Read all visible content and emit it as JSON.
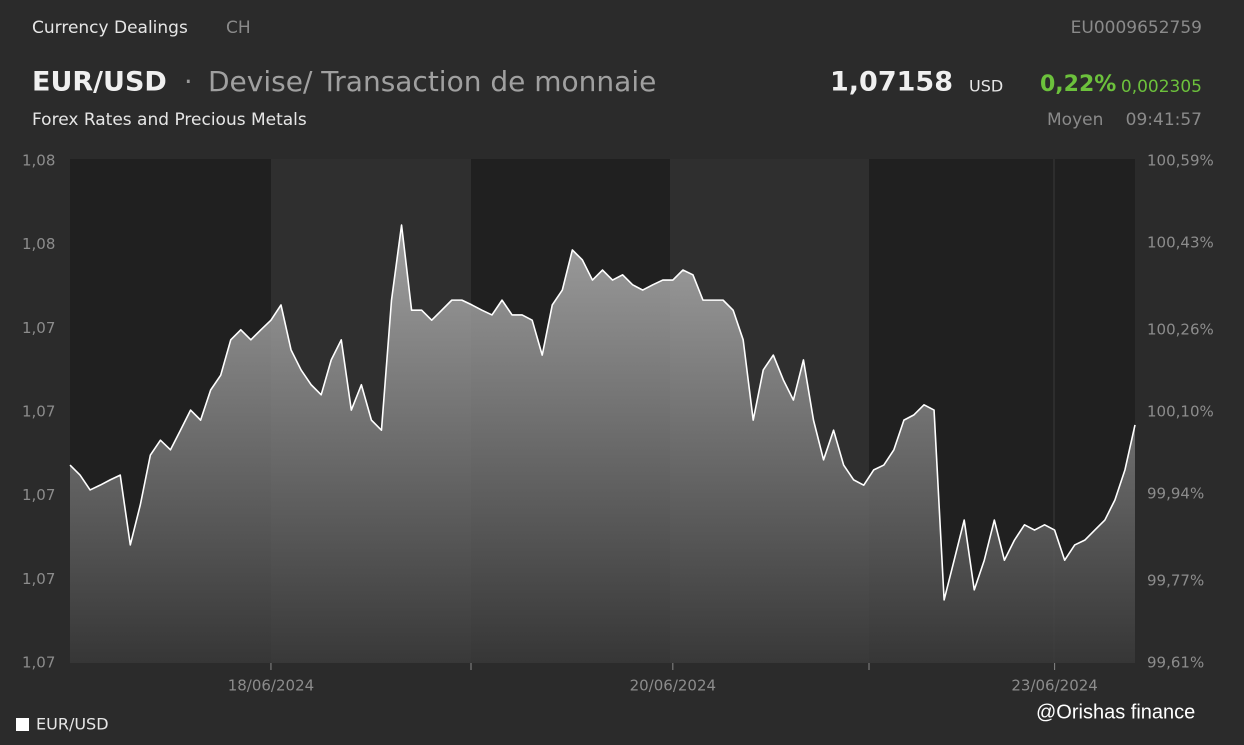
{
  "header": {
    "section": "Currency Dealings",
    "market": "CH",
    "isin": "EU0009652759",
    "symbol": "EUR/USD",
    "separator": "·",
    "name": "Devise/ Transaction de monnaie",
    "subtitle": "Forex Rates and Precious Metals",
    "price": "1,07158",
    "currency": "USD",
    "change_pct": "0,22%",
    "change": "0,002305",
    "price_type": "Moyen",
    "time": "09:41:57"
  },
  "watermark": "@Orishas finance",
  "chart_data": {
    "type": "line",
    "xlim": [
      0,
      106
    ],
    "xticks": [
      {
        "value": 20,
        "label": "18/06/2024"
      },
      {
        "value": 60,
        "label": "20/06/2024"
      },
      {
        "value": 98,
        "label": "23/06/2024"
      }
    ],
    "ylim": [
      1.0665,
      1.077
    ],
    "yticks": [
      {
        "value": 1.0665,
        "label": "1,07"
      },
      {
        "value": 1.06825,
        "label": "1,07"
      },
      {
        "value": 1.07,
        "label": "1,07"
      },
      {
        "value": 1.07175,
        "label": "1,07"
      },
      {
        "value": 1.0735,
        "label": "1,07"
      },
      {
        "value": 1.07525,
        "label": "1,08"
      },
      {
        "value": 1.077,
        "label": "1,08"
      }
    ],
    "y2lim": [
      99.61,
      100.59
    ],
    "y2ticks": [
      {
        "value": 99.61,
        "label": "99,61%"
      },
      {
        "value": 99.77,
        "label": "99,77%"
      },
      {
        "value": 99.94,
        "label": "99,94%"
      },
      {
        "value": 100.1,
        "label": "100,10%"
      },
      {
        "value": 100.26,
        "label": "100,26%"
      },
      {
        "value": 100.43,
        "label": "100,43%"
      },
      {
        "value": 100.59,
        "label": "100,59%"
      }
    ],
    "grid": false,
    "legend": "bottom-left",
    "series": [
      {
        "name": "EUR/USD",
        "color": "#ffffff",
        "values": [
          1.07064,
          1.07043,
          1.07012,
          1.07022,
          1.07033,
          1.07043,
          1.06897,
          1.06981,
          1.07085,
          1.07116,
          1.07096,
          1.07137,
          1.07179,
          1.07158,
          1.07221,
          1.07252,
          1.07326,
          1.07347,
          1.07326,
          1.07347,
          1.07367,
          1.07399,
          1.07305,
          1.07263,
          1.07232,
          1.07211,
          1.07284,
          1.07326,
          1.07179,
          1.07232,
          1.07158,
          1.07137,
          1.07409,
          1.07566,
          1.07388,
          1.07388,
          1.07367,
          1.07388,
          1.07409,
          1.07409,
          1.07399,
          1.07388,
          1.07378,
          1.07409,
          1.07378,
          1.07378,
          1.07367,
          1.07294,
          1.07399,
          1.0743,
          1.07514,
          1.07493,
          1.07451,
          1.07472,
          1.07451,
          1.07462,
          1.07441,
          1.0743,
          1.07441,
          1.07451,
          1.07451,
          1.07472,
          1.07462,
          1.07409,
          1.07409,
          1.07409,
          1.07388,
          1.07326,
          1.07158,
          1.07263,
          1.07294,
          1.07242,
          1.072,
          1.07284,
          1.07158,
          1.07075,
          1.07137,
          1.07064,
          1.07033,
          1.07022,
          1.07054,
          1.07064,
          1.07096,
          1.07158,
          1.07169,
          1.0719,
          1.07179,
          1.06782,
          1.06865,
          1.06949,
          1.06803,
          1.06865,
          1.06949,
          1.06865,
          1.06907,
          1.06939,
          1.06928,
          1.06939,
          1.06928,
          1.06865,
          1.06897,
          1.06907,
          1.06928,
          1.06949,
          1.06991,
          1.07054,
          1.07148
        ]
      }
    ]
  }
}
